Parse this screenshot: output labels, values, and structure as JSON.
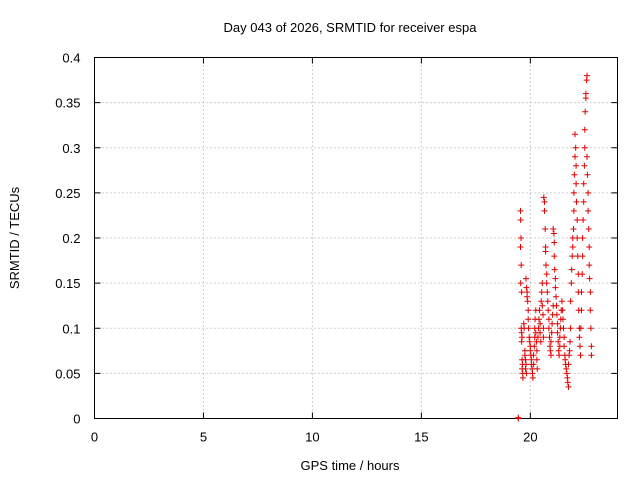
{
  "chart_data": {
    "type": "scatter",
    "title": "Day 043 of 2026, SRMTID for receiver espa",
    "xlabel": "GPS time / hours",
    "ylabel": "SRMTID / TECUs",
    "xlim": [
      0,
      24
    ],
    "ylim": [
      0,
      0.4
    ],
    "xticks": [
      0,
      5,
      10,
      15,
      20
    ],
    "xtick_labels": [
      "0",
      "5",
      "10",
      "15",
      "20"
    ],
    "yticks": [
      0,
      0.05,
      0.1,
      0.15,
      0.2,
      0.25,
      0.3,
      0.35,
      0.4
    ],
    "ytick_labels": [
      "0",
      "0.05",
      "0.1",
      "0.15",
      "0.2",
      "0.25",
      "0.3",
      "0.35",
      "0.4"
    ],
    "grid": true,
    "marker": "plus",
    "color": "#e00000",
    "series": [
      {
        "name": "SRMTID",
        "points": [
          [
            19.45,
            0.0
          ],
          [
            19.45,
            0.001
          ],
          [
            19.55,
            0.23
          ],
          [
            19.56,
            0.22
          ],
          [
            19.57,
            0.2
          ],
          [
            19.55,
            0.19
          ],
          [
            19.58,
            0.17
          ],
          [
            19.56,
            0.15
          ],
          [
            19.6,
            0.14
          ],
          [
            19.58,
            0.1
          ],
          [
            19.6,
            0.095
          ],
          [
            19.62,
            0.09
          ],
          [
            19.6,
            0.085
          ],
          [
            19.62,
            0.065
          ],
          [
            19.64,
            0.06
          ],
          [
            19.62,
            0.055
          ],
          [
            19.65,
            0.05
          ],
          [
            19.66,
            0.045
          ],
          [
            19.7,
            0.105
          ],
          [
            19.72,
            0.1
          ],
          [
            19.75,
            0.075
          ],
          [
            19.75,
            0.07
          ],
          [
            19.78,
            0.065
          ],
          [
            19.8,
            0.06
          ],
          [
            19.78,
            0.055
          ],
          [
            19.82,
            0.05
          ],
          [
            19.8,
            0.155
          ],
          [
            19.82,
            0.145
          ],
          [
            19.85,
            0.14
          ],
          [
            19.85,
            0.135
          ],
          [
            19.88,
            0.13
          ],
          [
            19.9,
            0.12
          ],
          [
            19.9,
            0.11
          ],
          [
            19.92,
            0.1
          ],
          [
            19.95,
            0.09
          ],
          [
            19.97,
            0.085
          ],
          [
            20.0,
            0.08
          ],
          [
            20.0,
            0.075
          ],
          [
            20.02,
            0.07
          ],
          [
            20.05,
            0.065
          ],
          [
            20.05,
            0.06
          ],
          [
            20.08,
            0.055
          ],
          [
            20.1,
            0.05
          ],
          [
            20.12,
            0.045
          ],
          [
            20.15,
            0.06
          ],
          [
            20.15,
            0.07
          ],
          [
            20.18,
            0.08
          ],
          [
            20.2,
            0.09
          ],
          [
            20.2,
            0.1
          ],
          [
            20.22,
            0.11
          ],
          [
            20.25,
            0.12
          ],
          [
            20.25,
            0.095
          ],
          [
            20.28,
            0.085
          ],
          [
            20.3,
            0.075
          ],
          [
            20.3,
            0.065
          ],
          [
            20.32,
            0.055
          ],
          [
            20.35,
            0.09
          ],
          [
            20.38,
            0.1
          ],
          [
            20.4,
            0.11
          ],
          [
            20.42,
            0.12
          ],
          [
            20.45,
            0.105
          ],
          [
            20.45,
            0.095
          ],
          [
            20.48,
            0.085
          ],
          [
            20.5,
            0.13
          ],
          [
            20.52,
            0.14
          ],
          [
            20.55,
            0.15
          ],
          [
            20.55,
            0.125
          ],
          [
            20.58,
            0.115
          ],
          [
            20.6,
            0.1
          ],
          [
            20.6,
            0.09
          ],
          [
            20.62,
            0.245
          ],
          [
            20.65,
            0.24
          ],
          [
            20.65,
            0.23
          ],
          [
            20.68,
            0.21
          ],
          [
            20.7,
            0.19
          ],
          [
            20.7,
            0.185
          ],
          [
            20.72,
            0.17
          ],
          [
            20.75,
            0.16
          ],
          [
            20.75,
            0.15
          ],
          [
            20.78,
            0.14
          ],
          [
            20.8,
            0.13
          ],
          [
            20.82,
            0.12
          ],
          [
            20.85,
            0.11
          ],
          [
            20.85,
            0.1
          ],
          [
            20.88,
            0.09
          ],
          [
            20.9,
            0.08
          ],
          [
            20.92,
            0.075
          ],
          [
            20.95,
            0.07
          ],
          [
            20.95,
            0.085
          ],
          [
            20.98,
            0.095
          ],
          [
            21.0,
            0.105
          ],
          [
            21.02,
            0.115
          ],
          [
            21.05,
            0.125
          ],
          [
            21.05,
            0.21
          ],
          [
            21.08,
            0.205
          ],
          [
            21.1,
            0.195
          ],
          [
            21.1,
            0.18
          ],
          [
            21.12,
            0.165
          ],
          [
            21.15,
            0.155
          ],
          [
            21.15,
            0.145
          ],
          [
            21.18,
            0.135
          ],
          [
            21.2,
            0.125
          ],
          [
            21.22,
            0.115
          ],
          [
            21.25,
            0.105
          ],
          [
            21.25,
            0.095
          ],
          [
            21.28,
            0.085
          ],
          [
            21.3,
            0.075
          ],
          [
            21.32,
            0.07
          ],
          [
            21.35,
            0.08
          ],
          [
            21.35,
            0.09
          ],
          [
            21.38,
            0.1
          ],
          [
            21.4,
            0.11
          ],
          [
            21.42,
            0.12
          ],
          [
            21.45,
            0.13
          ],
          [
            21.48,
            0.12
          ],
          [
            21.5,
            0.11
          ],
          [
            21.52,
            0.1
          ],
          [
            21.55,
            0.09
          ],
          [
            21.55,
            0.08
          ],
          [
            21.58,
            0.07
          ],
          [
            21.6,
            0.065
          ],
          [
            21.62,
            0.06
          ],
          [
            21.65,
            0.055
          ],
          [
            21.68,
            0.05
          ],
          [
            21.7,
            0.045
          ],
          [
            21.72,
            0.04
          ],
          [
            21.75,
            0.035
          ],
          [
            21.75,
            0.06
          ],
          [
            21.78,
            0.07
          ],
          [
            21.8,
            0.075
          ],
          [
            21.82,
            0.085
          ],
          [
            21.85,
            0.1
          ],
          [
            21.85,
            0.13
          ],
          [
            21.88,
            0.15
          ],
          [
            21.9,
            0.165
          ],
          [
            21.92,
            0.18
          ],
          [
            21.95,
            0.19
          ],
          [
            21.95,
            0.2
          ],
          [
            21.98,
            0.21
          ],
          [
            22.0,
            0.23
          ],
          [
            22.0,
            0.25
          ],
          [
            22.02,
            0.27
          ],
          [
            22.05,
            0.29
          ],
          [
            22.05,
            0.315
          ],
          [
            22.08,
            0.3
          ],
          [
            22.1,
            0.28
          ],
          [
            22.1,
            0.26
          ],
          [
            22.12,
            0.24
          ],
          [
            22.15,
            0.22
          ],
          [
            22.15,
            0.2
          ],
          [
            22.18,
            0.18
          ],
          [
            22.2,
            0.16
          ],
          [
            22.2,
            0.14
          ],
          [
            22.22,
            0.12
          ],
          [
            22.25,
            0.1
          ],
          [
            22.25,
            0.09
          ],
          [
            22.28,
            0.08
          ],
          [
            22.3,
            0.07
          ],
          [
            22.32,
            0.1
          ],
          [
            22.35,
            0.12
          ],
          [
            22.35,
            0.14
          ],
          [
            22.38,
            0.16
          ],
          [
            22.4,
            0.18
          ],
          [
            22.4,
            0.2
          ],
          [
            22.42,
            0.22
          ],
          [
            22.45,
            0.24
          ],
          [
            22.45,
            0.26
          ],
          [
            22.48,
            0.28
          ],
          [
            22.5,
            0.3
          ],
          [
            22.5,
            0.32
          ],
          [
            22.52,
            0.34
          ],
          [
            22.55,
            0.355
          ],
          [
            22.55,
            0.36
          ],
          [
            22.58,
            0.375
          ],
          [
            22.6,
            0.38
          ],
          [
            22.6,
            0.29
          ],
          [
            22.62,
            0.27
          ],
          [
            22.65,
            0.25
          ],
          [
            22.65,
            0.23
          ],
          [
            22.68,
            0.21
          ],
          [
            22.7,
            0.19
          ],
          [
            22.7,
            0.17
          ],
          [
            22.72,
            0.155
          ],
          [
            22.75,
            0.14
          ],
          [
            22.75,
            0.12
          ],
          [
            22.78,
            0.1
          ],
          [
            22.8,
            0.08
          ],
          [
            22.8,
            0.07
          ]
        ]
      }
    ]
  }
}
